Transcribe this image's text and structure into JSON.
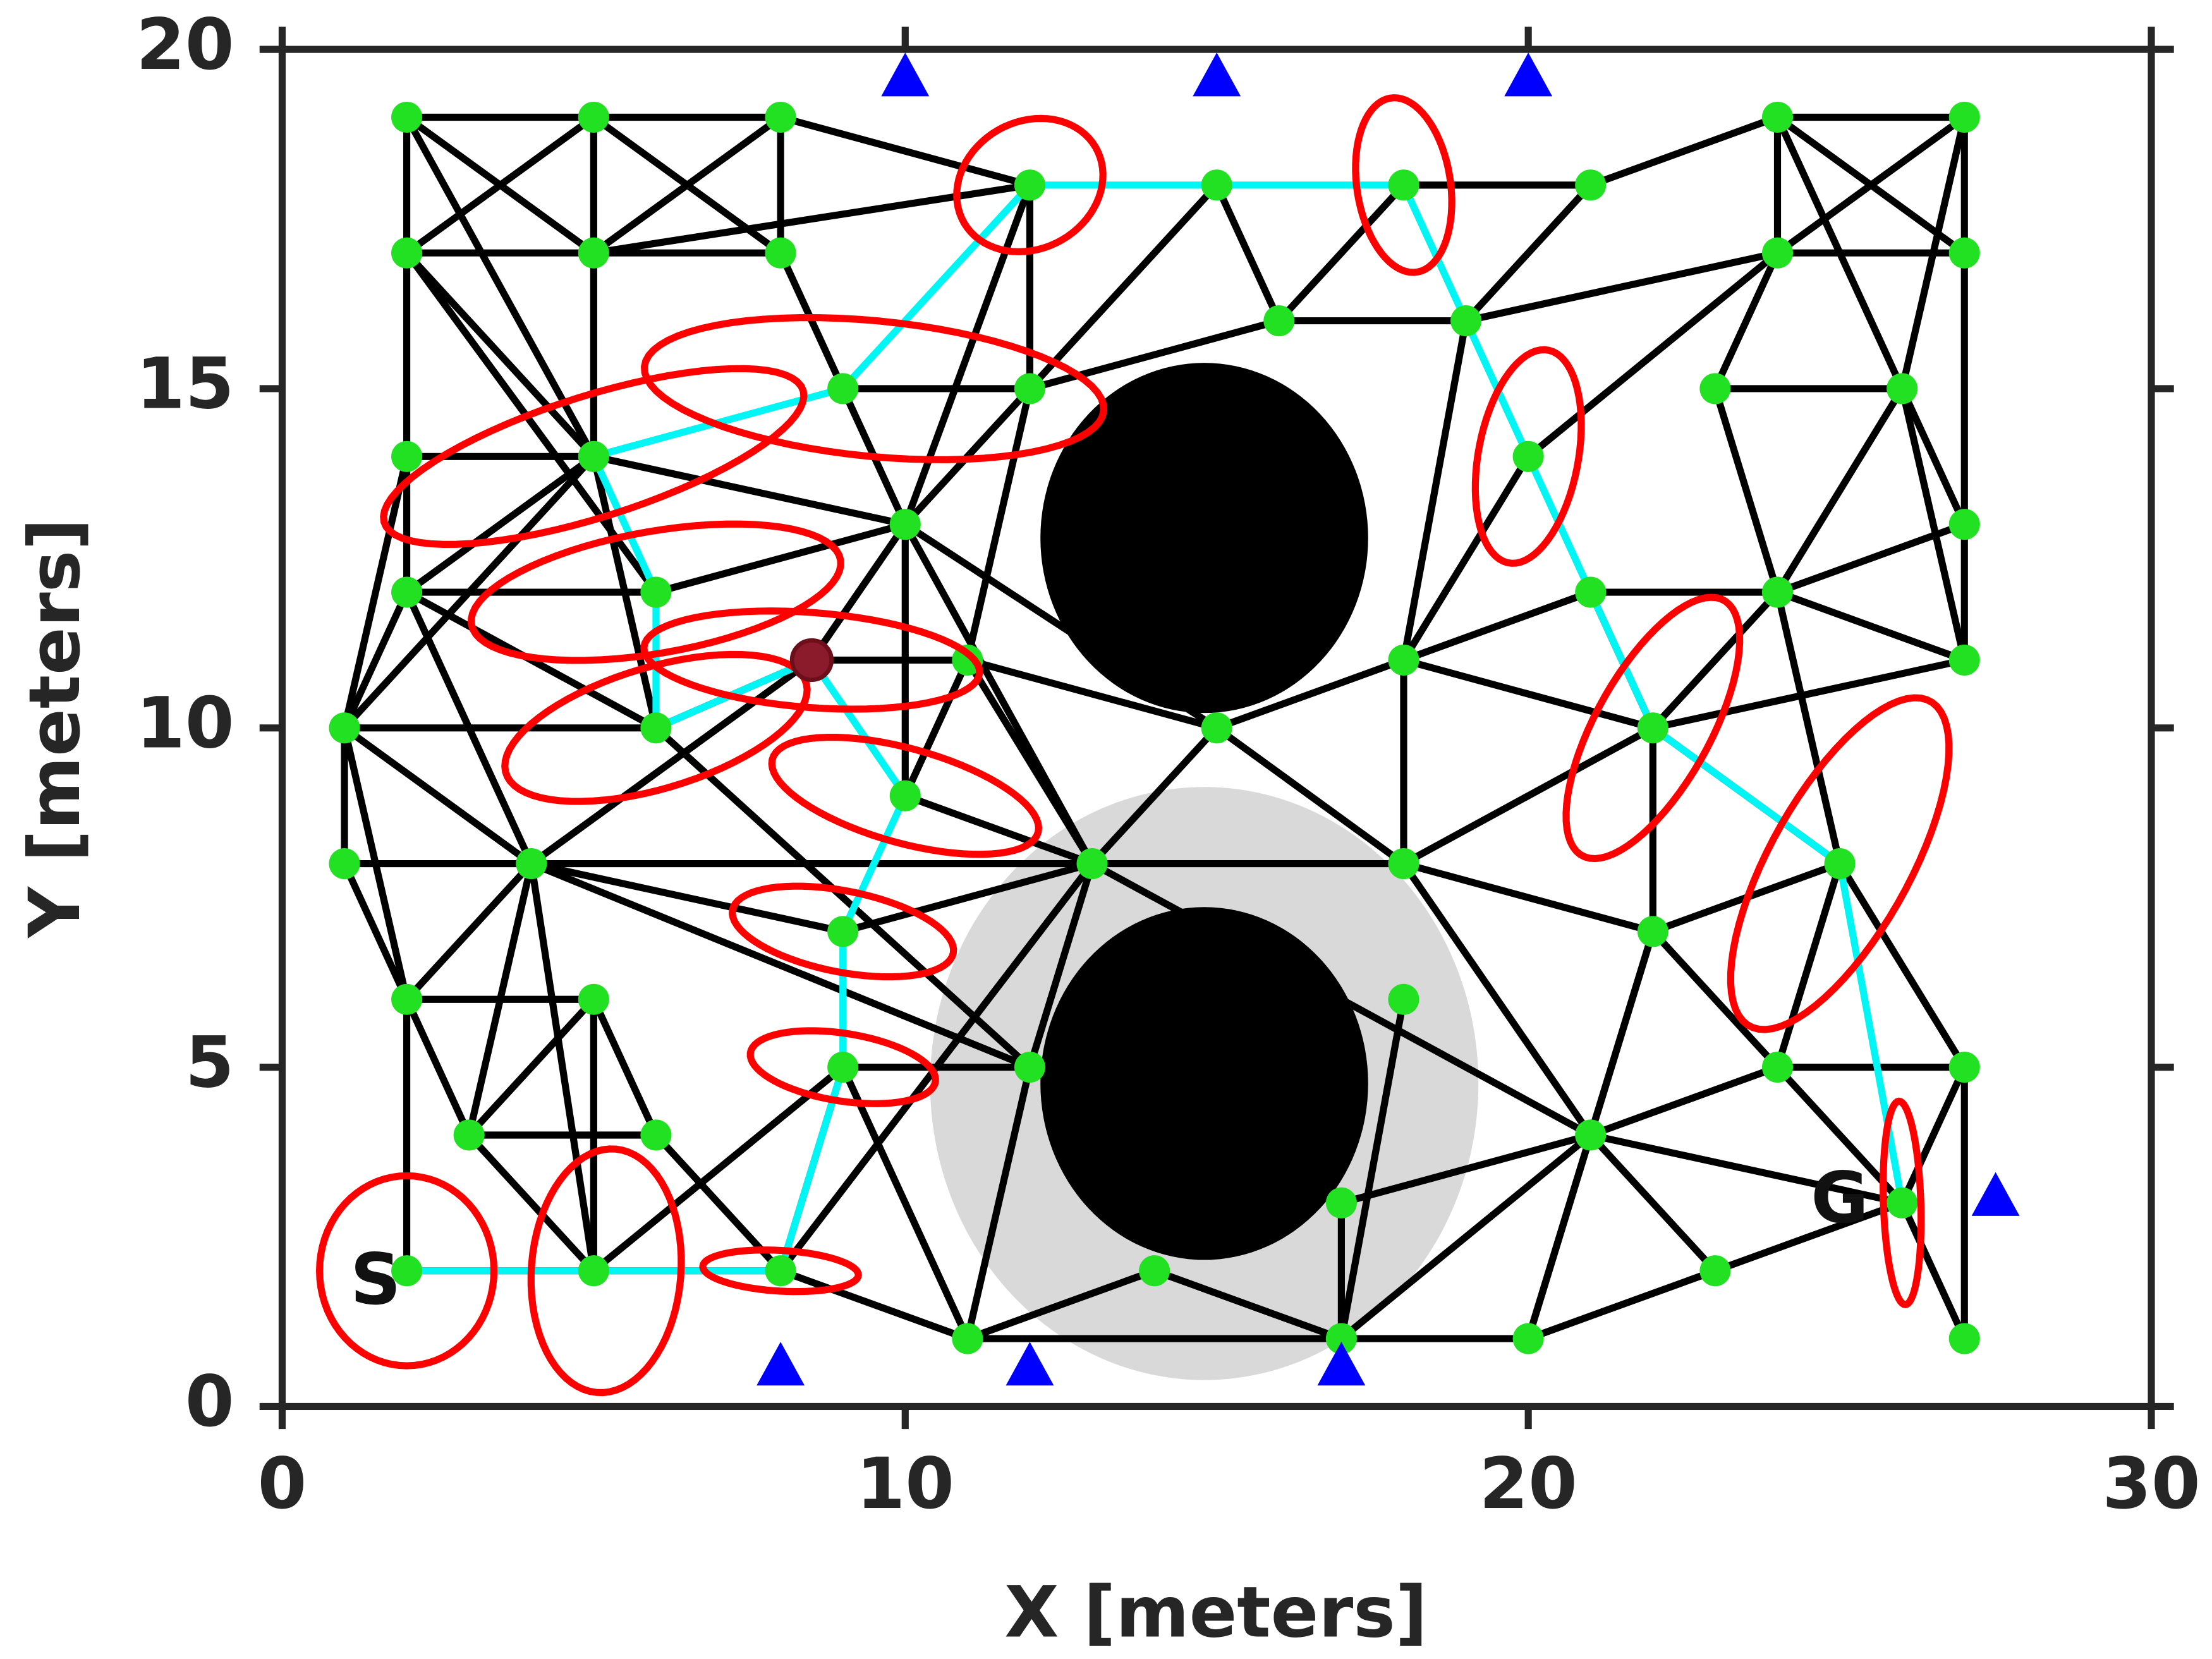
{
  "chart_data": {
    "type": "roadmap",
    "xlabel": "X [meters]",
    "ylabel": "Y [meters]",
    "xlim": [
      0,
      30
    ],
    "ylim": [
      0,
      20
    ],
    "xticks": [
      0,
      10,
      20,
      30
    ],
    "yticks": [
      0,
      5,
      10,
      15,
      20
    ],
    "colors": {
      "node": "#22e022",
      "edge": "#000000",
      "path": "#00f5f5",
      "ellipse": "#ff0000",
      "landmark": "#0000ff",
      "obstacle": "#000000",
      "region": "#d9d9d9",
      "marker": "#8b1a2b"
    },
    "nodes": {
      "x": [
        2,
        5,
        8,
        24,
        27,
        2,
        5,
        8,
        12,
        15,
        18,
        21,
        24,
        27,
        16,
        19,
        2,
        5,
        9,
        12,
        20,
        23,
        26,
        10,
        27,
        2,
        6,
        21,
        24,
        11,
        18,
        27,
        1,
        6,
        15,
        22,
        10,
        1,
        4,
        13,
        18,
        25,
        9,
        22,
        2,
        5,
        18,
        9,
        12,
        24,
        27,
        3,
        6,
        21,
        17,
        26,
        2,
        5,
        8,
        14,
        23,
        11,
        17,
        20,
        27
      ],
      "y": [
        19,
        19,
        19,
        19,
        19,
        17,
        17,
        17,
        18,
        18,
        18,
        18,
        17,
        17,
        16,
        16,
        14,
        14,
        15,
        15,
        14,
        15,
        15,
        13,
        13,
        12,
        12,
        12,
        12,
        11,
        11,
        11,
        10,
        10,
        10,
        10,
        9,
        8,
        8,
        8,
        8,
        8,
        7,
        7,
        6,
        6,
        6,
        5,
        5,
        5,
        5,
        4,
        4,
        4,
        3,
        3,
        2,
        2,
        2,
        2,
        2,
        1,
        1,
        1,
        1
      ]
    },
    "edges": [
      [
        2,
        19,
        5,
        19
      ],
      [
        5,
        19,
        8,
        19
      ],
      [
        2,
        17,
        5,
        17
      ],
      [
        5,
        17,
        8,
        17
      ],
      [
        2,
        19,
        2,
        17
      ],
      [
        5,
        19,
        5,
        17
      ],
      [
        8,
        19,
        8,
        17
      ],
      [
        2,
        19,
        5,
        17
      ],
      [
        5,
        19,
        2,
        17
      ],
      [
        5,
        19,
        8,
        17
      ],
      [
        8,
        19,
        5,
        17
      ],
      [
        8,
        19,
        12,
        18
      ],
      [
        5,
        17,
        12,
        18
      ],
      [
        2,
        17,
        2,
        14
      ],
      [
        2,
        19,
        5,
        14
      ],
      [
        2,
        17,
        5,
        14
      ],
      [
        5,
        17,
        5,
        14
      ],
      [
        2,
        17,
        6,
        12
      ],
      [
        2,
        14,
        5,
        14
      ],
      [
        5,
        14,
        2,
        12
      ],
      [
        5,
        14,
        1,
        10
      ],
      [
        5,
        14,
        6,
        10
      ],
      [
        5,
        14,
        10,
        13
      ],
      [
        2,
        14,
        2,
        12
      ],
      [
        2,
        12,
        1,
        10
      ],
      [
        2,
        14,
        1,
        10
      ],
      [
        2,
        12,
        6,
        12
      ],
      [
        2,
        12,
        4,
        8
      ],
      [
        2,
        12,
        6,
        10
      ],
      [
        1,
        10,
        1,
        8
      ],
      [
        1,
        10,
        6,
        10
      ],
      [
        1,
        10,
        4,
        8
      ],
      [
        1,
        10,
        2,
        6
      ],
      [
        1,
        8,
        2,
        6
      ],
      [
        1,
        8,
        4,
        8
      ],
      [
        4,
        8,
        13,
        8
      ],
      [
        4,
        8,
        9,
        7
      ],
      [
        4,
        8,
        2,
        6
      ],
      [
        4,
        8,
        3,
        4
      ],
      [
        4,
        8,
        5,
        2
      ],
      [
        4,
        8,
        12,
        5
      ],
      [
        4,
        8,
        8.5,
        11
      ],
      [
        2,
        6,
        5,
        6
      ],
      [
        2,
        6,
        2,
        2
      ],
      [
        2,
        6,
        3,
        4
      ],
      [
        5,
        6,
        5,
        2
      ],
      [
        5,
        6,
        6,
        4
      ],
      [
        5,
        6,
        3,
        4
      ],
      [
        3,
        4,
        6,
        4
      ],
      [
        3,
        4,
        5,
        2
      ],
      [
        6,
        4,
        8,
        2
      ],
      [
        5,
        2,
        9,
        5
      ],
      [
        5,
        2,
        2,
        2
      ],
      [
        5,
        2,
        8,
        2
      ],
      [
        8,
        2,
        11,
        1
      ],
      [
        8,
        2,
        9,
        5
      ],
      [
        8,
        2,
        13,
        8
      ],
      [
        6,
        10,
        12,
        5
      ],
      [
        6,
        12,
        10,
        13
      ],
      [
        6,
        10,
        8.5,
        11
      ],
      [
        8.5,
        11,
        11,
        11
      ],
      [
        8.5,
        11,
        10,
        13
      ],
      [
        9,
        7,
        13,
        8
      ],
      [
        10,
        9,
        13,
        8
      ],
      [
        10,
        9,
        10,
        13
      ],
      [
        10,
        9,
        11,
        11
      ],
      [
        9,
        5,
        12,
        5
      ],
      [
        9,
        5,
        11,
        1
      ],
      [
        10,
        13,
        13,
        8
      ],
      [
        10,
        13,
        9,
        15
      ],
      [
        10,
        13,
        12,
        15
      ],
      [
        10,
        13,
        12,
        18
      ],
      [
        9,
        15,
        12,
        15
      ],
      [
        9,
        15,
        8,
        17
      ],
      [
        12,
        15,
        12,
        18
      ],
      [
        11,
        11,
        12,
        15
      ],
      [
        11,
        11,
        13,
        8
      ],
      [
        11,
        11,
        15,
        10
      ],
      [
        10,
        13,
        15,
        10
      ],
      [
        12,
        15,
        16,
        16
      ],
      [
        12,
        15,
        15,
        18
      ],
      [
        15,
        18,
        16,
        16
      ],
      [
        16,
        16,
        19,
        16
      ],
      [
        16,
        16,
        18,
        18
      ],
      [
        18,
        18,
        21,
        18
      ],
      [
        19,
        16,
        21,
        18
      ],
      [
        19,
        16,
        24,
        17
      ],
      [
        19,
        16,
        18,
        11
      ],
      [
        21,
        18,
        24,
        19
      ],
      [
        24,
        19,
        27,
        19
      ],
      [
        24,
        17,
        27,
        17
      ],
      [
        24,
        19,
        24,
        17
      ],
      [
        27,
        19,
        27,
        17
      ],
      [
        24,
        19,
        27,
        17
      ],
      [
        27,
        19,
        24,
        17
      ],
      [
        24,
        19,
        26,
        15
      ],
      [
        27,
        19,
        26,
        15
      ],
      [
        24,
        17,
        23,
        15
      ],
      [
        24,
        17,
        20,
        14
      ],
      [
        23,
        15,
        26,
        15
      ],
      [
        23,
        15,
        24,
        12
      ],
      [
        26,
        15,
        27,
        13
      ],
      [
        26,
        15,
        27,
        11
      ],
      [
        26,
        15,
        24,
        12
      ],
      [
        27,
        13,
        24,
        12
      ],
      [
        27,
        11,
        27,
        17
      ],
      [
        24,
        12,
        27,
        11
      ],
      [
        24,
        12,
        21,
        12
      ],
      [
        24,
        12,
        22,
        10
      ],
      [
        24,
        12,
        25,
        8
      ],
      [
        21,
        12,
        18,
        11
      ],
      [
        21,
        12,
        22,
        10
      ],
      [
        20,
        14,
        18,
        11
      ],
      [
        18,
        11,
        22,
        10
      ],
      [
        18,
        11,
        15,
        10
      ],
      [
        18,
        11,
        18,
        8
      ],
      [
        22,
        10,
        27,
        11
      ],
      [
        22,
        10,
        18,
        8
      ],
      [
        22,
        10,
        25,
        8
      ],
      [
        18,
        8,
        13,
        8
      ],
      [
        18,
        8,
        22,
        7
      ],
      [
        18,
        8,
        21,
        4
      ],
      [
        18,
        8,
        15,
        10
      ],
      [
        15,
        10,
        13,
        8
      ],
      [
        25,
        8,
        22,
        7
      ],
      [
        25,
        8,
        27,
        5
      ],
      [
        25,
        8,
        24,
        5
      ],
      [
        22,
        7,
        21,
        4
      ],
      [
        22,
        7,
        22,
        10
      ],
      [
        22,
        7,
        24,
        5
      ],
      [
        22,
        7,
        20,
        1
      ],
      [
        21,
        4,
        24,
        5
      ],
      [
        21,
        4,
        26,
        3
      ],
      [
        21,
        4,
        17,
        3
      ],
      [
        21,
        4,
        17,
        1
      ],
      [
        21,
        4,
        20,
        1
      ],
      [
        21,
        4,
        23,
        2
      ],
      [
        21,
        4,
        13,
        8
      ],
      [
        24,
        5,
        27,
        5
      ],
      [
        24,
        5,
        26,
        3
      ],
      [
        27,
        5,
        27,
        1
      ],
      [
        27,
        5,
        26,
        3
      ],
      [
        26,
        3,
        27,
        1
      ],
      [
        26,
        3,
        23,
        2
      ],
      [
        23,
        2,
        20,
        1
      ],
      [
        18,
        6,
        17,
        1
      ],
      [
        17,
        3,
        17,
        1
      ],
      [
        17,
        1,
        20,
        1
      ],
      [
        11,
        1,
        17,
        1
      ],
      [
        11,
        1,
        14,
        2
      ],
      [
        14,
        2,
        17,
        1
      ],
      [
        11,
        1,
        12,
        5
      ],
      [
        12,
        5,
        13,
        8
      ]
    ],
    "path": {
      "x": [
        2,
        5,
        8,
        9,
        9,
        10,
        8.5,
        6,
        6,
        5,
        9,
        12,
        15,
        18,
        19,
        20,
        21,
        22,
        25,
        26
      ],
      "y": [
        2,
        2,
        2,
        5,
        7,
        9,
        11,
        10,
        12,
        14,
        15,
        18,
        18,
        18,
        16,
        14,
        12,
        10,
        8,
        3
      ]
    },
    "ellipses": [
      {
        "x": 2,
        "y": 2,
        "a": 1.4,
        "b": 1.4,
        "angle": 0
      },
      {
        "x": 5.2,
        "y": 2,
        "a": 1.8,
        "b": 1.2,
        "angle": 85
      },
      {
        "x": 8,
        "y": 2,
        "a": 1.25,
        "b": 0.3,
        "angle": -3
      },
      {
        "x": 9,
        "y": 5,
        "a": 1.5,
        "b": 0.5,
        "angle": -8
      },
      {
        "x": 9,
        "y": 7,
        "a": 1.8,
        "b": 0.6,
        "angle": -10
      },
      {
        "x": 10,
        "y": 9,
        "a": 2.2,
        "b": 0.7,
        "angle": -14
      },
      {
        "x": 8.5,
        "y": 11,
        "a": 2.7,
        "b": 0.7,
        "angle": -4
      },
      {
        "x": 6,
        "y": 10,
        "a": 2.5,
        "b": 0.9,
        "angle": 15
      },
      {
        "x": 6,
        "y": 12,
        "a": 3.0,
        "b": 0.9,
        "angle": 9
      },
      {
        "x": 5,
        "y": 14,
        "a": 3.5,
        "b": 0.9,
        "angle": 16
      },
      {
        "x": 9.5,
        "y": 15,
        "a": 3.7,
        "b": 1.0,
        "angle": -5
      },
      {
        "x": 12,
        "y": 18,
        "a": 1.2,
        "b": 0.95,
        "angle": 20
      },
      {
        "x": 18,
        "y": 18,
        "a": 1.3,
        "b": 0.75,
        "angle": 100
      },
      {
        "x": 20,
        "y": 14,
        "a": 1.6,
        "b": 0.8,
        "angle": 78
      },
      {
        "x": 22,
        "y": 10,
        "a": 2.2,
        "b": 0.9,
        "angle": 58
      },
      {
        "x": 25,
        "y": 8,
        "a": 2.8,
        "b": 1.1,
        "angle": 58
      },
      {
        "x": 26,
        "y": 3,
        "a": 1.5,
        "b": 0.3,
        "angle": 92
      }
    ],
    "obstacles": [
      {
        "x": 14.8,
        "y": 12.8,
        "rx": 2.63,
        "ry": 2.58
      },
      {
        "x": 14.8,
        "y": 4.76,
        "rx": 2.63,
        "ry": 2.6
      }
    ],
    "region": {
      "x": 14.8,
      "y": 4.76,
      "rx": 4.4,
      "ry": 4.37
    },
    "landmarks": {
      "x": [
        10,
        15,
        20,
        27.5,
        8,
        12,
        17
      ],
      "y": [
        19.6,
        19.6,
        19.6,
        3.1,
        0.6,
        0.6,
        0.6
      ]
    },
    "marker": {
      "x": 8.5,
      "y": 11
    },
    "annotations": [
      {
        "text": "S",
        "x": 1.5,
        "y": 1.8
      },
      {
        "text": "G",
        "x": 25,
        "y": 3
      }
    ]
  }
}
